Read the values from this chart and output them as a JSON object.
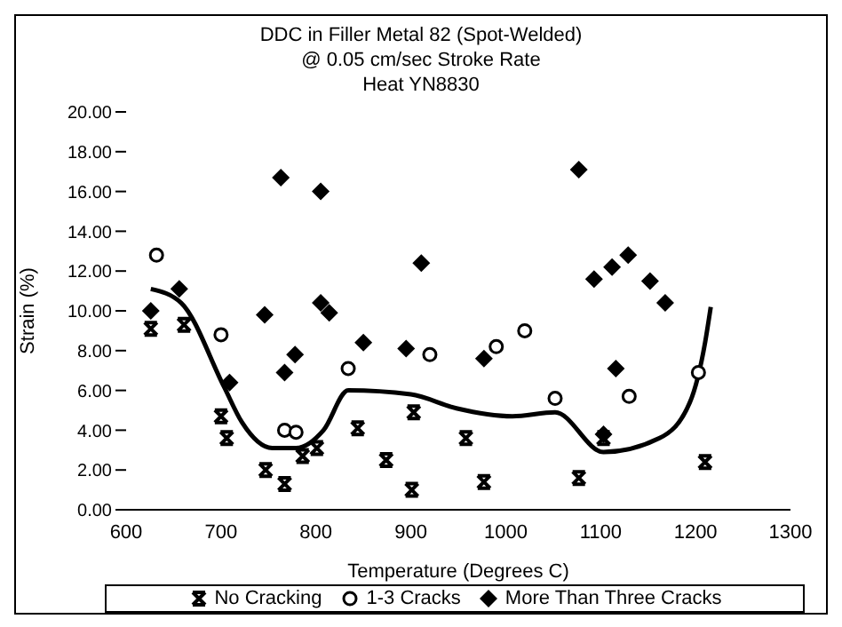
{
  "chart_data": {
    "type": "scatter",
    "title": "DDC in Filler Metal 82 (Spot-Welded)",
    "subtitle": "@ 0.05 cm/sec Stroke Rate\nHeat YN8830",
    "xlabel": "Temperature (Degrees C)",
    "ylabel": "Strain (%)",
    "xlim": [
      600,
      1300
    ],
    "xticks": [
      600,
      700,
      800,
      900,
      1000,
      1100,
      1200,
      1300
    ],
    "ylim": [
      0,
      20
    ],
    "yticks": [
      {
        "value": 0,
        "label": "0.00"
      },
      {
        "value": 2,
        "label": "2.00"
      },
      {
        "value": 4,
        "label": "4.00"
      },
      {
        "value": 6,
        "label": "6.00"
      },
      {
        "value": 8,
        "label": "8.00"
      },
      {
        "value": 10,
        "label": "10.00"
      },
      {
        "value": 12,
        "label": "12.00"
      },
      {
        "value": 14,
        "label": "14.00"
      },
      {
        "value": 16,
        "label": "16.00"
      },
      {
        "value": 18,
        "label": "18.00"
      },
      {
        "value": 20,
        "label": "20.00"
      }
    ],
    "legend": "bottom",
    "series": [
      {
        "name": "No Cracking",
        "color": "#000000",
        "marker": "cross",
        "x": [
          626,
          661,
          700,
          706,
          747,
          767,
          786,
          801,
          844,
          874,
          901,
          903,
          958,
          977,
          1077,
          1103,
          1210
        ],
        "values": [
          9.1,
          9.3,
          4.7,
          3.6,
          2.0,
          1.3,
          2.7,
          3.1,
          4.1,
          2.5,
          1.0,
          4.9,
          3.6,
          1.4,
          1.6,
          3.6,
          2.4
        ]
      },
      {
        "name": "1-3 Cracks",
        "color": "#000000",
        "marker": "circle",
        "x": [
          632,
          700,
          767,
          779,
          834,
          920,
          990,
          1020,
          1052,
          1130,
          1203
        ],
        "values": [
          12.8,
          8.8,
          4.0,
          3.9,
          7.1,
          7.8,
          8.2,
          9.0,
          5.6,
          5.7,
          6.9
        ]
      },
      {
        "name": "More Than Three Cracks",
        "color": "#000000",
        "marker": "diamond",
        "x": [
          626,
          656,
          709,
          746,
          763,
          767,
          778,
          805,
          805,
          814,
          850,
          895,
          911,
          977,
          1077,
          1093,
          1103,
          1112,
          1116,
          1129,
          1152,
          1168
        ],
        "values": [
          10.0,
          11.1,
          6.4,
          9.8,
          16.7,
          6.9,
          7.8,
          16.0,
          10.4,
          9.9,
          8.4,
          8.1,
          12.4,
          7.6,
          17.1,
          11.6,
          3.8,
          12.2,
          7.1,
          12.8,
          11.5,
          10.4
        ]
      },
      {
        "type": "line",
        "color": "#000000",
        "marker": "none",
        "line_style": "solid",
        "x": [
          626,
          658,
          703,
          722,
          754,
          779,
          808,
          834,
          900,
          948,
          1007,
          1052,
          1103,
          1162,
          1194,
          1210,
          1216
        ],
        "values": [
          11.1,
          10.4,
          6.2,
          4.4,
          3.1,
          3.1,
          4.0,
          6.0,
          5.8,
          5.1,
          4.7,
          4.9,
          2.9,
          3.6,
          5.4,
          8.4,
          10.2
        ]
      }
    ]
  }
}
